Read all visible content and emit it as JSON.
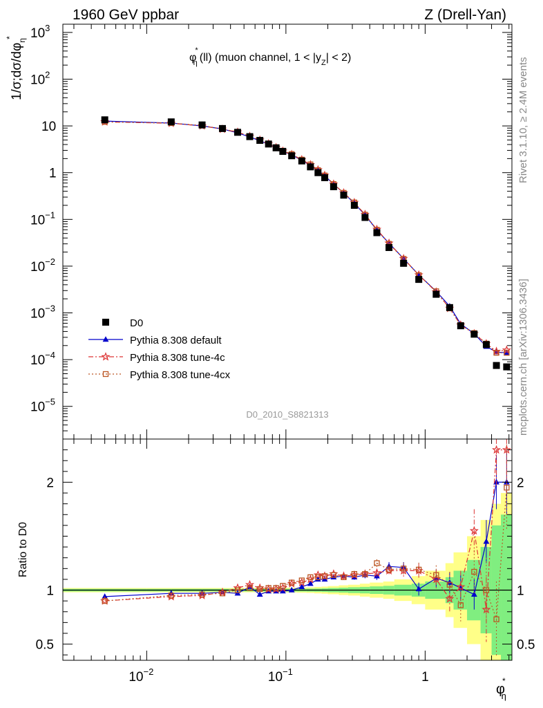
{
  "header": {
    "left": "1960 GeV ppbar",
    "right": "Z (Drell-Yan)"
  },
  "side": {
    "rivet": "Rivet 3.1.10, ≥ 2.4M events",
    "mcplots": "mcplots.cern.ch [arXiv:1306.3436]"
  },
  "plot": {
    "title_main": "φ",
    "title_sup": "*",
    "title_sub": "η",
    "title_rest": "(ll) (muon channel, 1 < |y",
    "title_ysub": "Z",
    "title_end": "| < 2)",
    "watermark": "D0_2010_S8821313",
    "ylabel_main": "1/σ;dσ/dφ",
    "ylabel_sub": "η",
    "ylabel_sup": "*",
    "ratio_ylabel": "Ratio to D0",
    "xlabel_main": "φ",
    "xlabel_sup": "*",
    "xlabel_sub": "η"
  },
  "axes": {
    "x_ticks": [
      {
        "value": 0.01,
        "base": "10",
        "exp": "−2"
      },
      {
        "value": 0.1,
        "base": "10",
        "exp": "−1"
      },
      {
        "value": 1,
        "base": "1",
        "exp": ""
      }
    ],
    "y_ticks": [
      {
        "value": 1000,
        "base": "10",
        "exp": "3"
      },
      {
        "value": 100,
        "base": "10",
        "exp": "2"
      },
      {
        "value": 10,
        "base": "10",
        "exp": ""
      },
      {
        "value": 1,
        "base": "1",
        "exp": ""
      },
      {
        "value": 0.1,
        "base": "10",
        "exp": "−1"
      },
      {
        "value": 0.01,
        "base": "10",
        "exp": "−2"
      },
      {
        "value": 0.001,
        "base": "10",
        "exp": "−3"
      },
      {
        "value": 0.0001,
        "base": "10",
        "exp": "−4"
      },
      {
        "value": 1e-05,
        "base": "10",
        "exp": "−5"
      }
    ],
    "ratio_ticks": [
      {
        "value": 0.5,
        "label": "0.5"
      },
      {
        "value": 1,
        "label": "1"
      },
      {
        "value": 2,
        "label": "2"
      }
    ]
  },
  "legend": [
    {
      "label": "D0"
    },
    {
      "label": "Pythia 8.308 default"
    },
    {
      "label": "Pythia 8.308 tune-4c"
    },
    {
      "label": "Pythia 8.308 tune-4cx"
    }
  ],
  "chart_data": {
    "type": "scatter",
    "x_scale": "log",
    "y_scale": "log",
    "xlim": [
      0.0025,
      4.2
    ],
    "ylim": [
      2e-06,
      1500
    ],
    "ratio_ylim": [
      0.35,
      2.4
    ],
    "colors": {
      "data": "#000000",
      "default": "#0000cc",
      "tune4c": "#dd3333",
      "tune4cx": "#bb5522",
      "band_inner": "#80ee80",
      "band_outer": "#ffff88"
    },
    "bins": [
      [
        0.0,
        0.01
      ],
      [
        0.01,
        0.02
      ],
      [
        0.02,
        0.03
      ],
      [
        0.03,
        0.04
      ],
      [
        0.04,
        0.05
      ],
      [
        0.05,
        0.06
      ],
      [
        0.06,
        0.07
      ],
      [
        0.07,
        0.08
      ],
      [
        0.08,
        0.09
      ],
      [
        0.09,
        0.1
      ],
      [
        0.1,
        0.12
      ],
      [
        0.12,
        0.14
      ],
      [
        0.14,
        0.16
      ],
      [
        0.16,
        0.18
      ],
      [
        0.18,
        0.2
      ],
      [
        0.2,
        0.24
      ],
      [
        0.24,
        0.28
      ],
      [
        0.28,
        0.34
      ],
      [
        0.34,
        0.4
      ],
      [
        0.4,
        0.5
      ],
      [
        0.5,
        0.6
      ],
      [
        0.6,
        0.8
      ],
      [
        0.8,
        1.0
      ],
      [
        1.0,
        1.4
      ],
      [
        1.4,
        1.6
      ],
      [
        1.6,
        2.0
      ],
      [
        2.0,
        2.5
      ],
      [
        2.5,
        3.0
      ],
      [
        3.0,
        3.5
      ],
      [
        3.5,
        4.2
      ]
    ],
    "x": [
      0.005,
      0.015,
      0.025,
      0.035,
      0.045,
      0.055,
      0.065,
      0.075,
      0.085,
      0.095,
      0.11,
      0.13,
      0.15,
      0.17,
      0.19,
      0.22,
      0.26,
      0.31,
      0.37,
      0.45,
      0.55,
      0.7,
      0.9,
      1.2,
      1.5,
      1.8,
      2.25,
      2.75,
      3.25,
      3.85
    ],
    "series": [
      {
        "name": "D0",
        "marker": "square",
        "values": [
          13.5,
          12.2,
          10.5,
          8.8,
          7.3,
          5.9,
          4.9,
          4.1,
          3.4,
          2.85,
          2.3,
          1.78,
          1.33,
          1.0,
          0.78,
          0.5,
          0.33,
          0.2,
          0.11,
          0.052,
          0.025,
          0.0115,
          0.0052,
          0.0025,
          0.0013,
          0.00053,
          0.00035,
          0.00021,
          7.5e-05,
          7e-05
        ],
        "ratio_band_inner": [
          0.012,
          0.012,
          0.012,
          0.012,
          0.012,
          0.012,
          0.012,
          0.012,
          0.012,
          0.012,
          0.013,
          0.013,
          0.014,
          0.015,
          0.017,
          0.02,
          0.023,
          0.027,
          0.03,
          0.035,
          0.04,
          0.05,
          0.06,
          0.08,
          0.12,
          0.18,
          0.28,
          0.4,
          0.6,
          0.7
        ],
        "ratio_band_outer": [
          0.02,
          0.02,
          0.02,
          0.02,
          0.02,
          0.02,
          0.02,
          0.02,
          0.02,
          0.02,
          0.022,
          0.024,
          0.026,
          0.03,
          0.033,
          0.038,
          0.045,
          0.05,
          0.06,
          0.07,
          0.08,
          0.1,
          0.13,
          0.18,
          0.25,
          0.35,
          0.5,
          0.65,
          0.8,
          0.9
        ]
      },
      {
        "name": "Pythia 8.308 default",
        "marker": "triangle",
        "values": [
          12.7,
          11.5,
          10.0,
          8.6,
          7.1,
          5.8,
          4.8,
          4.05,
          3.4,
          2.85,
          2.4,
          1.84,
          1.45,
          1.12,
          0.86,
          0.56,
          0.37,
          0.22,
          0.125,
          0.059,
          0.031,
          0.0145,
          0.0065,
          0.0029,
          0.00139,
          0.00058,
          0.00036,
          0.00019,
          0.000145,
          0.00014
        ],
        "ratio": [
          0.94,
          0.97,
          0.97,
          0.98,
          0.97,
          1.03,
          0.96,
          0.99,
          0.99,
          0.99,
          1.0,
          1.03,
          1.06,
          1.1,
          1.1,
          1.12,
          1.13,
          1.12,
          1.14,
          1.13,
          1.22,
          1.21,
          1.01,
          1.11,
          1.07,
          1.02,
          0.96,
          1.45,
          2.0,
          2.0
        ],
        "ratio_err": [
          0.01,
          0.01,
          0.01,
          0.01,
          0.01,
          0.01,
          0.01,
          0.01,
          0.01,
          0.01,
          0.01,
          0.01,
          0.012,
          0.014,
          0.016,
          0.018,
          0.02,
          0.024,
          0.03,
          0.035,
          0.04,
          0.05,
          0.06,
          0.08,
          0.1,
          0.12,
          0.14,
          0.2,
          0.25,
          0.3
        ]
      },
      {
        "name": "Pythia 8.308 tune-4c",
        "marker": "star",
        "values": [
          12.2,
          11.4,
          10.0,
          8.5,
          7.4,
          6.0,
          5.0,
          4.15,
          3.45,
          2.9,
          2.45,
          1.9,
          1.48,
          1.15,
          0.88,
          0.57,
          0.37,
          0.23,
          0.128,
          0.061,
          0.031,
          0.0145,
          0.0065,
          0.0028,
          0.00125,
          0.00055,
          0.00036,
          0.00022,
          0.00015,
          0.00016
        ],
        "ratio": [
          0.9,
          0.94,
          0.95,
          0.98,
          1.02,
          1.05,
          1.02,
          1.01,
          1.01,
          1.02,
          1.06,
          1.07,
          1.1,
          1.14,
          1.13,
          1.15,
          1.13,
          1.14,
          1.15,
          1.16,
          1.18,
          1.18,
          1.18,
          1.1,
          0.92,
          1.03,
          1.55,
          0.82,
          2.3,
          2.3
        ],
        "ratio_err": [
          0.01,
          0.01,
          0.01,
          0.01,
          0.01,
          0.01,
          0.01,
          0.01,
          0.01,
          0.01,
          0.012,
          0.012,
          0.014,
          0.016,
          0.018,
          0.02,
          0.022,
          0.026,
          0.03,
          0.036,
          0.045,
          0.055,
          0.065,
          0.09,
          0.12,
          0.15,
          0.2,
          0.3,
          0.35,
          0.4
        ]
      },
      {
        "name": "Pythia 8.308 tune-4cx",
        "marker": "open-square",
        "values": [
          12.2,
          11.5,
          10.2,
          8.6,
          7.4,
          6.0,
          5.0,
          4.2,
          3.5,
          2.95,
          2.5,
          1.9,
          1.5,
          1.13,
          0.87,
          0.57,
          0.37,
          0.23,
          0.126,
          0.06,
          0.03,
          0.0143,
          0.0064,
          0.0029,
          0.00125,
          0.00055,
          0.00037,
          0.00022,
          0.00014,
          0.00014
        ],
        "ratio": [
          0.9,
          0.95,
          0.96,
          0.97,
          1.0,
          1.02,
          1.01,
          1.02,
          1.02,
          1.04,
          1.07,
          1.09,
          1.12,
          1.12,
          1.13,
          1.14,
          1.12,
          1.15,
          1.15,
          1.25,
          1.19,
          1.2,
          1.19,
          1.14,
          1.05,
          0.86,
          1.17,
          1.0,
          0.73,
          1.95
        ],
        "ratio_err": [
          0.01,
          0.01,
          0.01,
          0.01,
          0.01,
          0.01,
          0.01,
          0.01,
          0.01,
          0.01,
          0.012,
          0.012,
          0.014,
          0.016,
          0.018,
          0.02,
          0.022,
          0.026,
          0.03,
          0.036,
          0.045,
          0.055,
          0.065,
          0.09,
          0.12,
          0.15,
          0.2,
          0.3,
          0.35,
          0.4
        ]
      }
    ]
  }
}
